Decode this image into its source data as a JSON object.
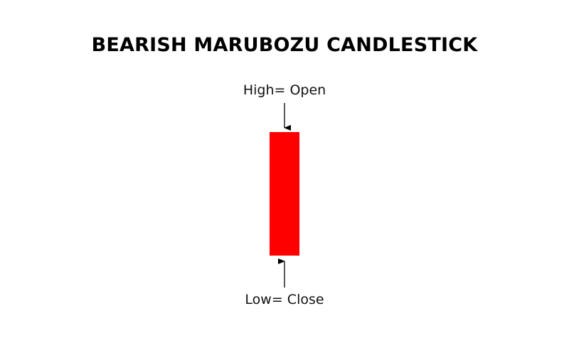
{
  "title": "BEARISH MARUBOZU CANDLESTICK",
  "labels": {
    "top": "High= Open",
    "bottom": "Low= Close"
  },
  "colors": {
    "candle": "#ff0000",
    "arrow": "#000000"
  }
}
